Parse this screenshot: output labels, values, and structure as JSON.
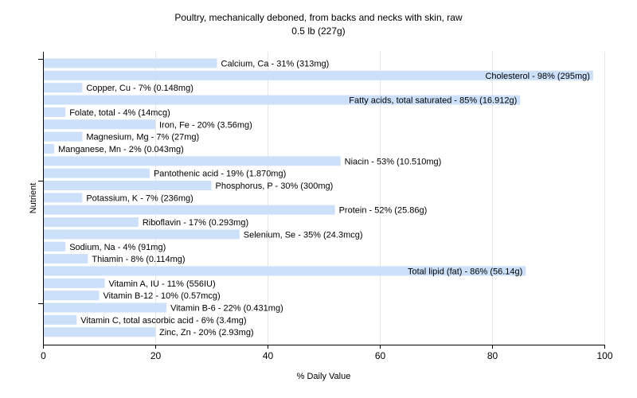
{
  "chart_data": {
    "type": "bar",
    "orientation": "horizontal",
    "title": "Poultry, mechanically deboned, from backs and necks with skin, raw",
    "subtitle": "0.5 lb (227g)",
    "xlabel": "% Daily Value",
    "ylabel": "Nutrient",
    "xlim": [
      0,
      100
    ],
    "xticks": [
      0,
      20,
      40,
      60,
      80,
      100
    ],
    "grid": true,
    "legend": "none",
    "bar_color": "#cce0fa",
    "categories": [
      "Calcium, Ca",
      "Cholesterol",
      "Copper, Cu",
      "Fatty acids, total saturated",
      "Folate, total",
      "Iron, Fe",
      "Magnesium, Mg",
      "Manganese, Mn",
      "Niacin",
      "Pantothenic acid",
      "Phosphorus, P",
      "Potassium, K",
      "Protein",
      "Riboflavin",
      "Selenium, Se",
      "Sodium, Na",
      "Thiamin",
      "Total lipid (fat)",
      "Vitamin A, IU",
      "Vitamin B-12",
      "Vitamin B-6",
      "Vitamin C, total ascorbic acid",
      "Zinc, Zn"
    ],
    "values": [
      31,
      98,
      7,
      85,
      4,
      20,
      7,
      2,
      53,
      19,
      30,
      7,
      52,
      17,
      35,
      4,
      8,
      86,
      11,
      10,
      22,
      6,
      20
    ],
    "labels": [
      "Calcium, Ca - 31% (313mg)",
      "Cholesterol - 98% (295mg)",
      "Copper, Cu - 7% (0.148mg)",
      "Fatty acids, total saturated - 85% (16.912g)",
      "Folate, total - 4% (14mcg)",
      "Iron, Fe - 20% (3.56mg)",
      "Magnesium, Mg - 7% (27mg)",
      "Manganese, Mn - 2% (0.043mg)",
      "Niacin - 53% (10.510mg)",
      "Pantothenic acid - 19% (1.870mg)",
      "Phosphorus, P - 30% (300mg)",
      "Potassium, K - 7% (236mg)",
      "Protein - 52% (25.86g)",
      "Riboflavin - 17% (0.293mg)",
      "Selenium, Se - 35% (24.3mcg)",
      "Sodium, Na - 4% (91mg)",
      "Thiamin - 8% (0.114mg)",
      "Total lipid (fat) - 86% (56.14g)",
      "Vitamin A, IU - 11% (556IU)",
      "Vitamin B-12 - 10% (0.57mcg)",
      "Vitamin B-6 - 22% (0.431mg)",
      "Vitamin C, total ascorbic acid - 6% (3.4mg)",
      "Zinc, Zn - 20% (2.93mg)"
    ]
  }
}
